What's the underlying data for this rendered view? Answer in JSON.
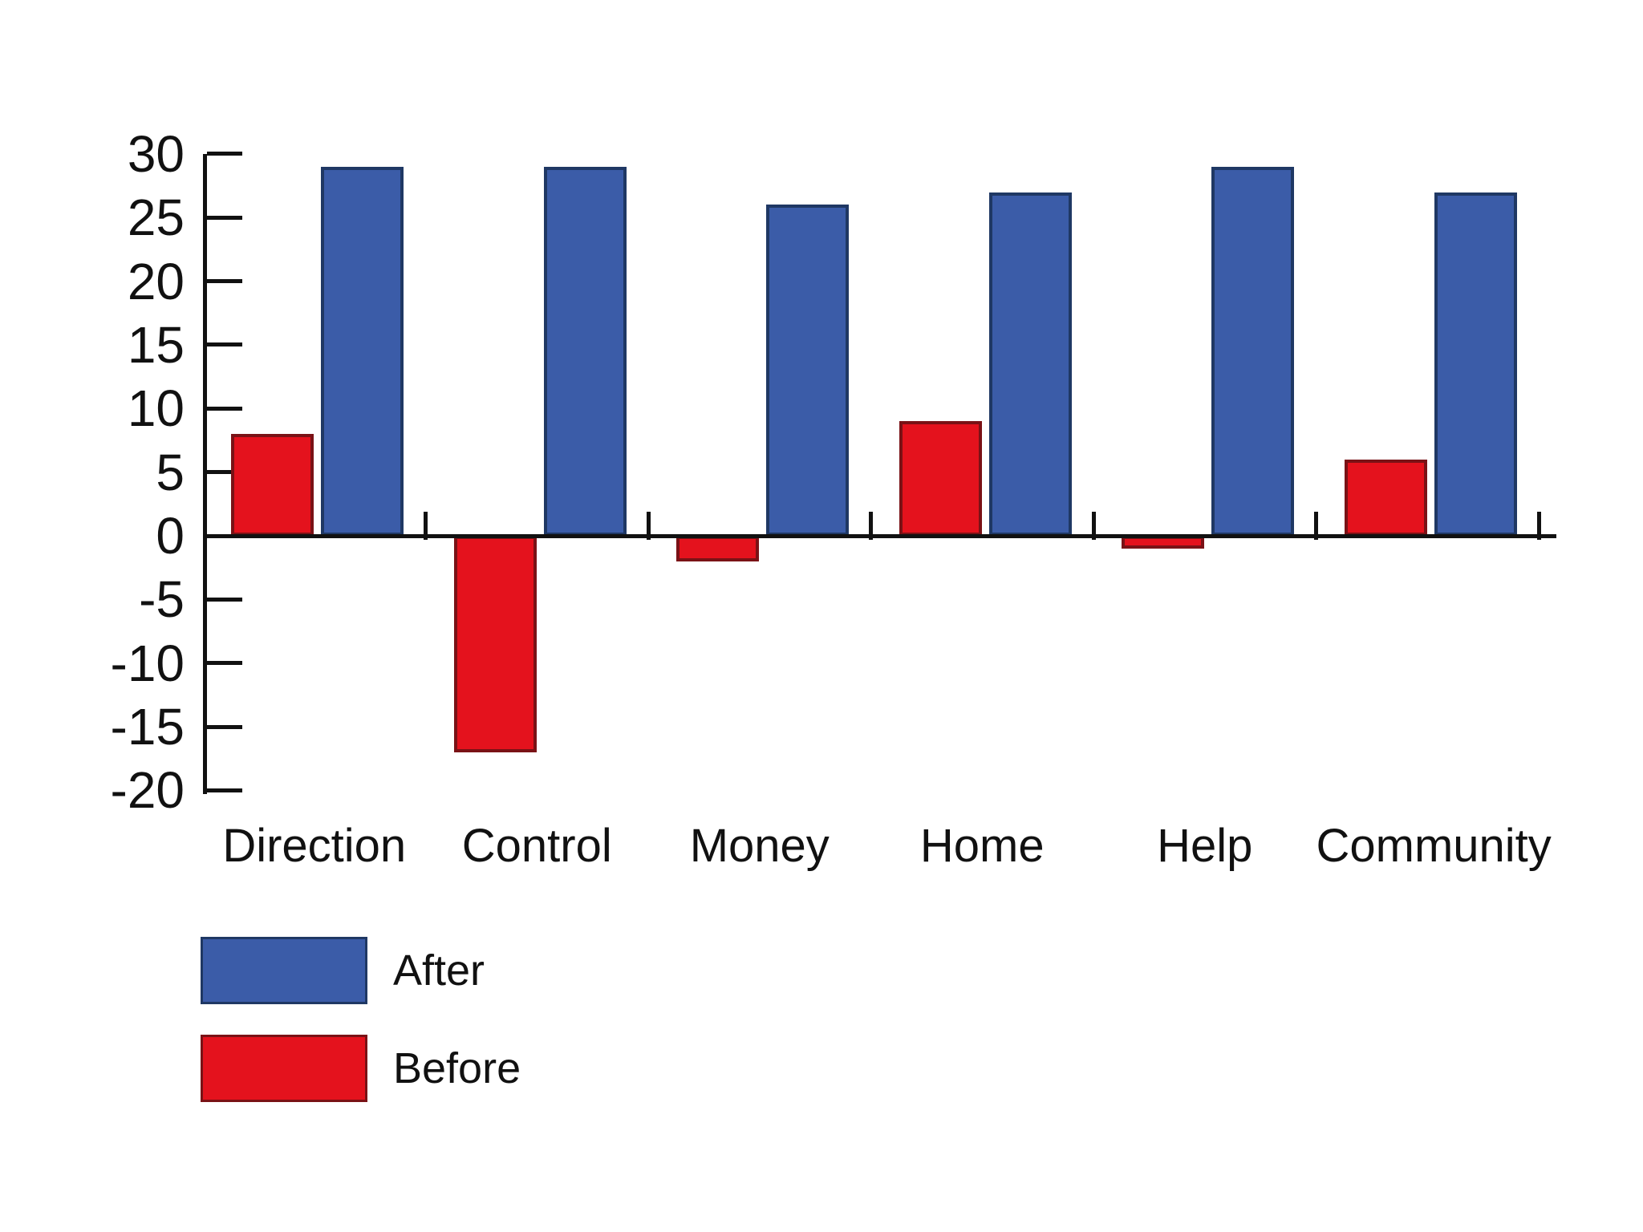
{
  "chart_data": {
    "type": "bar",
    "title": "",
    "xlabel": "",
    "ylabel": "",
    "categories": [
      "Direction",
      "Control",
      "Money",
      "Home",
      "Help",
      "Community"
    ],
    "series": [
      {
        "name": "After",
        "color": "#3B5CA8",
        "border_color": "#1F3864",
        "values": [
          29,
          29,
          26,
          27,
          29,
          27
        ]
      },
      {
        "name": "Before",
        "color": "#E4121D",
        "border_color": "#7A1216",
        "values": [
          8,
          -17,
          -2,
          9,
          -1,
          6
        ]
      }
    ],
    "group_order_left_to_right": [
      "Before",
      "After"
    ],
    "ylim": [
      -20,
      30
    ],
    "ytick_step": 5,
    "yticks": [
      30,
      25,
      20,
      15,
      10,
      5,
      0,
      -5,
      -10,
      -15,
      -20
    ],
    "grid": false,
    "legend": {
      "position": "bottom-left",
      "entries": [
        {
          "label": "After",
          "color": "#3B5CA8"
        },
        {
          "label": "Before",
          "color": "#E4121D"
        }
      ]
    },
    "axis_color": "#111111",
    "background_color": "#ffffff"
  }
}
